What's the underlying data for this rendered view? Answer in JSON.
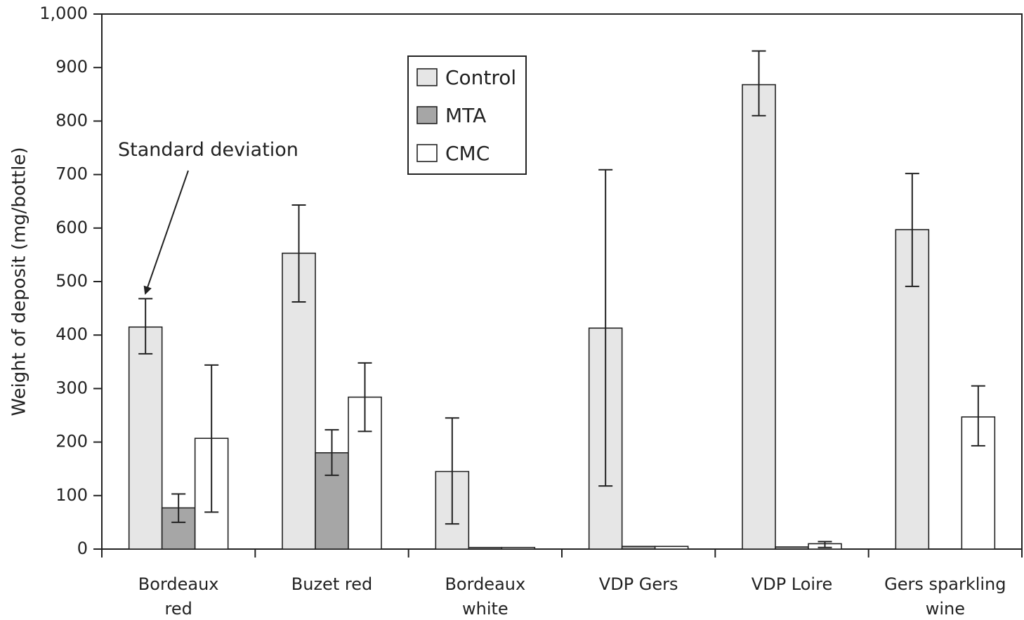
{
  "chart_data": {
    "type": "bar",
    "title": "",
    "xlabel": "",
    "ylabel": "Weight of deposit (mg/bottle)",
    "ylim": [
      0,
      1000
    ],
    "yticks": [
      0,
      100,
      200,
      300,
      400,
      500,
      600,
      700,
      800,
      900,
      1000
    ],
    "ytick_labels": [
      "0",
      "100",
      "200",
      "300",
      "400",
      "500",
      "600",
      "700",
      "800",
      "900",
      "1,000"
    ],
    "grid": false,
    "legend_position": "top-center",
    "categories": [
      [
        "Bordeaux",
        "red"
      ],
      [
        "Buzet red"
      ],
      [
        "Bordeaux",
        "white"
      ],
      [
        "VDP Gers"
      ],
      [
        "VDP Loire"
      ],
      [
        "Gers sparkling",
        "wine"
      ]
    ],
    "series": [
      {
        "name": "Control",
        "color": "#e6e6e6",
        "values": [
          415,
          553,
          145,
          413,
          868,
          597
        ],
        "error": [
          [
            365,
            468
          ],
          [
            462,
            643
          ],
          [
            47,
            245
          ],
          [
            118,
            709
          ],
          [
            810,
            931
          ],
          [
            491,
            702
          ]
        ]
      },
      {
        "name": "MTA",
        "color": "#a6a6a6",
        "values": [
          77,
          180,
          3,
          5,
          4,
          null
        ],
        "error": [
          [
            50,
            103
          ],
          [
            138,
            223
          ],
          null,
          null,
          null,
          null
        ]
      },
      {
        "name": "CMC",
        "color": "#ffffff",
        "values": [
          207,
          284,
          3,
          5,
          10,
          247
        ],
        "error": [
          [
            69,
            344
          ],
          [
            220,
            348
          ],
          null,
          null,
          [
            3,
            14
          ],
          [
            193,
            305
          ]
        ]
      }
    ],
    "annotations": [
      {
        "text": "Standard deviation",
        "points_to": {
          "category_index": 0,
          "series": "Control"
        }
      }
    ]
  }
}
